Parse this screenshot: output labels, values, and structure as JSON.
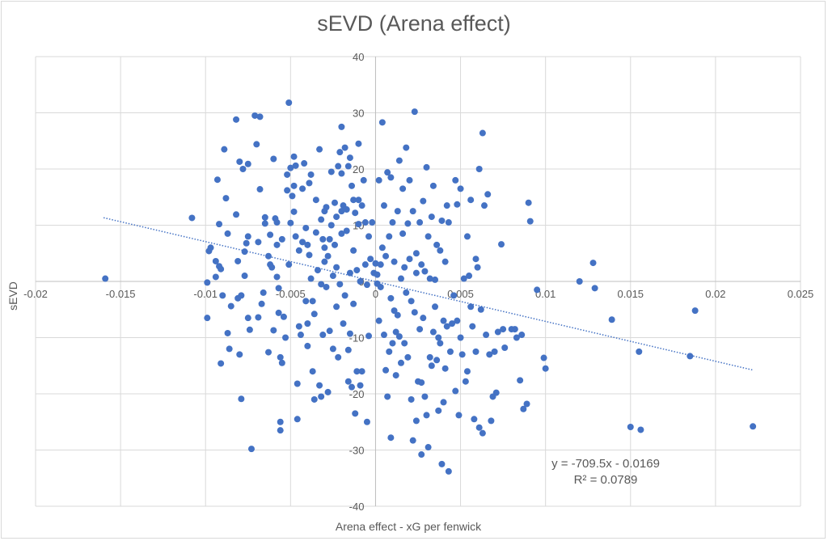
{
  "chart_data": {
    "type": "scatter",
    "title": "sEVD (Arena effect)",
    "xlabel": "Arena effect - xG per fenwick",
    "ylabel": "sEVD",
    "xlim": [
      -0.02,
      0.025
    ],
    "ylim": [
      -40,
      40
    ],
    "xticks": [
      "-0.02",
      "-0.015",
      "-0.01",
      "-0.005",
      "0",
      "0.005",
      "0.01",
      "0.015",
      "0.02",
      "0.025"
    ],
    "xtick_values": [
      -0.02,
      -0.015,
      -0.01,
      -0.005,
      0,
      0.005,
      0.01,
      0.015,
      0.02,
      0.025
    ],
    "yticks": [
      "-40",
      "-30",
      "-20",
      "-10",
      "0",
      "10",
      "20",
      "30",
      "40"
    ],
    "ytick_values": [
      -40,
      -30,
      -20,
      -10,
      0,
      10,
      20,
      30,
      40
    ],
    "grid": true,
    "legend": "none",
    "marker_color": "#4472C4",
    "trendline": {
      "type": "linear",
      "slope": -709.5,
      "intercept": -0.0169,
      "x_range": [
        -0.016,
        0.0222
      ],
      "style": "dotted",
      "color": "#4472C4",
      "equation_label": "y = -709.5x - 0.0169",
      "r2_label": "R² = 0.0789"
    },
    "points": [
      [
        -0.0159,
        0.5
      ],
      [
        -0.0108,
        11.3
      ],
      [
        -0.0099,
        -0.2
      ],
      [
        -0.0099,
        -6.5
      ],
      [
        -0.0098,
        5.4
      ],
      [
        -0.0097,
        6.0
      ],
      [
        -0.0094,
        0.8
      ],
      [
        -0.0094,
        3.6
      ],
      [
        -0.0093,
        18.1
      ],
      [
        -0.0092,
        10.2
      ],
      [
        -0.0092,
        2.7
      ],
      [
        -0.0091,
        2.2
      ],
      [
        -0.009,
        -2.5
      ],
      [
        -0.0091,
        -14.6
      ],
      [
        -0.0089,
        23.5
      ],
      [
        -0.0088,
        14.8
      ],
      [
        -0.0087,
        8.5
      ],
      [
        -0.0087,
        -9.2
      ],
      [
        -0.0086,
        -12.0
      ],
      [
        -0.0085,
        -4.4
      ],
      [
        -0.0082,
        28.8
      ],
      [
        -0.0082,
        11.9
      ],
      [
        -0.0081,
        3.6
      ],
      [
        -0.0081,
        -3.0
      ],
      [
        -0.008,
        -13.0
      ],
      [
        -0.008,
        21.3
      ],
      [
        -0.0078,
        20.0
      ],
      [
        -0.0079,
        -20.9
      ],
      [
        -0.0079,
        -2.5
      ],
      [
        -0.0077,
        5.3
      ],
      [
        -0.0077,
        1.0
      ],
      [
        -0.0076,
        6.8
      ],
      [
        -0.0075,
        8.0
      ],
      [
        -0.0075,
        -6.5
      ],
      [
        -0.0074,
        -8.6
      ],
      [
        -0.0075,
        20.9
      ],
      [
        -0.0073,
        -29.8
      ],
      [
        -0.0071,
        29.5
      ],
      [
        -0.007,
        24.4
      ],
      [
        -0.0069,
        7.0
      ],
      [
        -0.0069,
        -6.4
      ],
      [
        -0.0068,
        16.4
      ],
      [
        -0.0068,
        29.3
      ],
      [
        -0.0067,
        -4.0
      ],
      [
        -0.0066,
        -2.0
      ],
      [
        -0.0065,
        10.3
      ],
      [
        -0.0065,
        11.4
      ],
      [
        -0.0063,
        4.5
      ],
      [
        -0.0063,
        -12.6
      ],
      [
        -0.0062,
        8.3
      ],
      [
        -0.0062,
        3.0
      ],
      [
        -0.0061,
        2.5
      ],
      [
        -0.006,
        -8.7
      ],
      [
        -0.006,
        21.8
      ],
      [
        -0.0059,
        11.2
      ],
      [
        -0.0058,
        10.5
      ],
      [
        -0.0058,
        6.5
      ],
      [
        -0.0058,
        0.8
      ],
      [
        -0.0057,
        -1.2
      ],
      [
        -0.0057,
        -5.6
      ],
      [
        -0.0056,
        -25.0
      ],
      [
        -0.0056,
        -26.5
      ],
      [
        -0.0056,
        -13.5
      ],
      [
        -0.0055,
        -14.5
      ],
      [
        -0.0055,
        7.5
      ],
      [
        -0.0054,
        -6.3
      ],
      [
        -0.0053,
        -10.0
      ],
      [
        -0.0052,
        16.2
      ],
      [
        -0.0052,
        19.0
      ],
      [
        -0.0051,
        31.8
      ],
      [
        -0.0051,
        3.0
      ],
      [
        -0.005,
        10.4
      ],
      [
        -0.005,
        20.2
      ],
      [
        -0.0049,
        15.2
      ],
      [
        -0.0048,
        22.2
      ],
      [
        -0.0048,
        17.0
      ],
      [
        -0.0048,
        12.4
      ],
      [
        -0.0047,
        20.6
      ],
      [
        -0.0047,
        8.0
      ],
      [
        -0.0046,
        -24.5
      ],
      [
        -0.0046,
        -18.2
      ],
      [
        -0.0045,
        5.5
      ],
      [
        -0.0045,
        -8.0
      ],
      [
        -0.0044,
        -9.5
      ],
      [
        -0.0043,
        7.0
      ],
      [
        -0.0043,
        16.5
      ],
      [
        -0.0042,
        21.0
      ],
      [
        -0.0041,
        9.5
      ],
      [
        -0.0041,
        -3.5
      ],
      [
        -0.004,
        6.5
      ],
      [
        -0.004,
        -7.5
      ],
      [
        -0.004,
        -11.5
      ],
      [
        -0.0039,
        17.5
      ],
      [
        -0.0039,
        4.7
      ],
      [
        -0.0038,
        19.0
      ],
      [
        -0.0038,
        0.5
      ],
      [
        -0.0037,
        -16.0
      ],
      [
        -0.0037,
        -3.5
      ],
      [
        -0.0036,
        -5.8
      ],
      [
        -0.0036,
        -21.0
      ],
      [
        -0.0035,
        8.7
      ],
      [
        -0.0035,
        14.5
      ],
      [
        -0.0034,
        2.0
      ],
      [
        -0.0033,
        -18.5
      ],
      [
        -0.0033,
        23.5
      ],
      [
        -0.0032,
        -20.5
      ],
      [
        -0.0032,
        11.0
      ],
      [
        -0.0032,
        -0.5
      ],
      [
        -0.0031,
        7.5
      ],
      [
        -0.0031,
        -9.5
      ],
      [
        -0.003,
        6.0
      ],
      [
        -0.003,
        3.5
      ],
      [
        -0.003,
        12.5
      ],
      [
        -0.0029,
        -1.0
      ],
      [
        -0.0029,
        13.2
      ],
      [
        -0.0028,
        -19.7
      ],
      [
        -0.0028,
        4.5
      ],
      [
        -0.0027,
        -8.8
      ],
      [
        -0.0027,
        7.5
      ],
      [
        -0.0026,
        19.5
      ],
      [
        -0.0026,
        10.0
      ],
      [
        -0.0025,
        1.0
      ],
      [
        -0.0025,
        -12.0
      ],
      [
        -0.0024,
        14.0
      ],
      [
        -0.0024,
        6.5
      ],
      [
        -0.0023,
        2.5
      ],
      [
        -0.0023,
        11.5
      ],
      [
        -0.0023,
        -4.5
      ],
      [
        -0.0022,
        -13.5
      ],
      [
        -0.0022,
        20.5
      ],
      [
        -0.0021,
        23.0
      ],
      [
        -0.0021,
        -0.5
      ],
      [
        -0.002,
        8.5
      ],
      [
        -0.002,
        12.5
      ],
      [
        -0.002,
        27.5
      ],
      [
        -0.002,
        19.2
      ],
      [
        -0.0019,
        13.5
      ],
      [
        -0.0019,
        -7.5
      ],
      [
        -0.0018,
        23.8
      ],
      [
        -0.0018,
        -2.5
      ],
      [
        -0.0017,
        12.8
      ],
      [
        -0.0017,
        9.0
      ],
      [
        -0.0016,
        -17.8
      ],
      [
        -0.0016,
        -12.2
      ],
      [
        -0.0016,
        20.5
      ],
      [
        -0.0015,
        22.0
      ],
      [
        -0.0015,
        1.5
      ],
      [
        -0.0015,
        -9.3
      ],
      [
        -0.0014,
        -18.8
      ],
      [
        -0.0014,
        17.0
      ],
      [
        -0.0013,
        14.5
      ],
      [
        -0.0013,
        5.5
      ],
      [
        -0.0013,
        -4.0
      ],
      [
        -0.0012,
        12.2
      ],
      [
        -0.0012,
        -23.5
      ],
      [
        -0.0011,
        -16.0
      ],
      [
        -0.0011,
        2.0
      ],
      [
        -0.001,
        14.5
      ],
      [
        -0.001,
        24.5
      ],
      [
        -0.001,
        10.2
      ],
      [
        -0.0009,
        0.0
      ],
      [
        -0.0009,
        -18.5
      ],
      [
        -0.0008,
        -16.0
      ],
      [
        -0.0008,
        13.5
      ],
      [
        -0.0007,
        18.0
      ],
      [
        -0.0006,
        10.5
      ],
      [
        -0.0006,
        3.0
      ],
      [
        -0.0005,
        -0.6
      ],
      [
        -0.0005,
        -25.0
      ],
      [
        -0.0004,
        -9.7
      ],
      [
        -0.0004,
        8.0
      ],
      [
        -0.0003,
        4.0
      ],
      [
        -0.0002,
        10.5
      ],
      [
        -0.0001,
        1.5
      ],
      [
        0.0,
        3.2
      ],
      [
        0.0001,
        1.2
      ],
      [
        0.0001,
        -0.4
      ],
      [
        0.0002,
        -7.0
      ],
      [
        0.0002,
        18.0
      ],
      [
        0.0003,
        -1.0
      ],
      [
        0.0003,
        3.0
      ],
      [
        0.0004,
        28.3
      ],
      [
        0.0004,
        6.0
      ],
      [
        0.0005,
        -9.5
      ],
      [
        0.0005,
        13.5
      ],
      [
        0.0006,
        -15.8
      ],
      [
        0.0006,
        4.5
      ],
      [
        0.0007,
        -20.5
      ],
      [
        0.0007,
        19.4
      ],
      [
        0.0008,
        8.0
      ],
      [
        0.0008,
        -12.5
      ],
      [
        0.0009,
        -3.0
      ],
      [
        0.0009,
        18.5
      ],
      [
        0.0009,
        -27.8
      ],
      [
        0.001,
        10.5
      ],
      [
        0.001,
        -11.0
      ],
      [
        0.0011,
        -5.2
      ],
      [
        0.0011,
        3.5
      ],
      [
        0.0012,
        -16.7
      ],
      [
        0.0012,
        -9.0
      ],
      [
        0.0013,
        12.5
      ],
      [
        0.0013,
        -6.0
      ],
      [
        0.0014,
        21.5
      ],
      [
        0.0014,
        -9.8
      ],
      [
        0.0015,
        0.5
      ],
      [
        0.0015,
        -14.5
      ],
      [
        0.0016,
        16.5
      ],
      [
        0.0016,
        8.5
      ],
      [
        0.0017,
        -11.0
      ],
      [
        0.0017,
        2.5
      ],
      [
        0.0018,
        -2.0
      ],
      [
        0.0018,
        23.8
      ],
      [
        0.0019,
        10.3
      ],
      [
        0.0019,
        -13.5
      ],
      [
        0.002,
        4.0
      ],
      [
        0.002,
        18.0
      ],
      [
        0.0021,
        -3.5
      ],
      [
        0.0021,
        -21.0
      ],
      [
        0.0022,
        12.5
      ],
      [
        0.0022,
        -28.3
      ],
      [
        0.0023,
        30.2
      ],
      [
        0.0023,
        -5.5
      ],
      [
        0.0024,
        5.0
      ],
      [
        0.0024,
        -24.8
      ],
      [
        0.0024,
        1.5
      ],
      [
        0.0025,
        -17.8
      ],
      [
        0.0026,
        -8.5
      ],
      [
        0.0026,
        10.5
      ],
      [
        0.0027,
        -30.8
      ],
      [
        0.0027,
        3.0
      ],
      [
        0.0027,
        -18.0
      ],
      [
        0.0028,
        14.3
      ],
      [
        0.0028,
        -6.5
      ],
      [
        0.0029,
        -20.5
      ],
      [
        0.0029,
        1.8
      ],
      [
        0.003,
        20.3
      ],
      [
        0.003,
        -23.8
      ],
      [
        0.0031,
        8.0
      ],
      [
        0.0031,
        -29.5
      ],
      [
        0.0032,
        -13.5
      ],
      [
        0.0032,
        0.5
      ],
      [
        0.0033,
        11.5
      ],
      [
        0.0033,
        -15.0
      ],
      [
        0.0034,
        17.0
      ],
      [
        0.0034,
        -9.0
      ],
      [
        0.0035,
        -4.5
      ],
      [
        0.0035,
        0.3
      ],
      [
        0.0036,
        -14.0
      ],
      [
        0.0036,
        6.5
      ],
      [
        0.0037,
        -10.0
      ],
      [
        0.0037,
        -23.0
      ],
      [
        0.0038,
        5.5
      ],
      [
        0.0038,
        -11.0
      ],
      [
        0.0039,
        -32.5
      ],
      [
        0.0039,
        10.8
      ],
      [
        0.004,
        -7.0
      ],
      [
        0.004,
        -21.5
      ],
      [
        0.0041,
        3.5
      ],
      [
        0.0041,
        -15.5
      ],
      [
        0.0042,
        13.5
      ],
      [
        0.0042,
        -8.0
      ],
      [
        0.0043,
        10.5
      ],
      [
        0.0043,
        -33.8
      ],
      [
        0.0044,
        -12.5
      ],
      [
        0.0045,
        -7.5
      ],
      [
        0.0046,
        -2.5
      ],
      [
        0.0047,
        -19.5
      ],
      [
        0.0047,
        18.0
      ],
      [
        0.0048,
        -7.0
      ],
      [
        0.0048,
        13.7
      ],
      [
        0.0049,
        -23.8
      ],
      [
        0.005,
        -10.0
      ],
      [
        0.005,
        16.5
      ],
      [
        0.0051,
        -13.0
      ],
      [
        0.0052,
        0.5
      ],
      [
        0.0053,
        -17.8
      ],
      [
        0.0054,
        8.0
      ],
      [
        0.0054,
        -16.0
      ],
      [
        0.0055,
        1.0
      ],
      [
        0.0056,
        -4.5
      ],
      [
        0.0056,
        14.5
      ],
      [
        0.0057,
        -8.0
      ],
      [
        0.0058,
        -24.5
      ],
      [
        0.0059,
        4.0
      ],
      [
        0.0059,
        -12.5
      ],
      [
        0.006,
        2.5
      ],
      [
        0.0061,
        20.0
      ],
      [
        0.0061,
        -26.0
      ],
      [
        0.0062,
        -5.0
      ],
      [
        0.0063,
        -27.0
      ],
      [
        0.0063,
        26.4
      ],
      [
        0.0064,
        13.5
      ],
      [
        0.0065,
        -9.5
      ],
      [
        0.0066,
        15.5
      ],
      [
        0.0067,
        -13.0
      ],
      [
        0.0068,
        -24.8
      ],
      [
        0.0069,
        -20.5
      ],
      [
        0.007,
        -12.5
      ],
      [
        0.0071,
        -19.8
      ],
      [
        0.0072,
        -9.0
      ],
      [
        0.0074,
        6.6
      ],
      [
        0.0075,
        -8.5
      ],
      [
        0.0076,
        -11.8
      ],
      [
        0.008,
        -8.5
      ],
      [
        0.0082,
        -8.5
      ],
      [
        0.0083,
        -10.0
      ],
      [
        0.0085,
        -17.6
      ],
      [
        0.0086,
        -9.5
      ],
      [
        0.0087,
        -22.7
      ],
      [
        0.0089,
        -21.8
      ],
      [
        0.009,
        14.0
      ],
      [
        0.0091,
        10.7
      ],
      [
        0.0095,
        -1.5
      ],
      [
        0.0099,
        -13.6
      ],
      [
        0.01,
        -15.5
      ],
      [
        0.012,
        0.0
      ],
      [
        0.0128,
        3.3
      ],
      [
        0.0129,
        -1.2
      ],
      [
        0.0139,
        -6.8
      ],
      [
        0.015,
        -25.9
      ],
      [
        0.0155,
        -12.5
      ],
      [
        0.0156,
        -26.4
      ],
      [
        0.0185,
        -13.3
      ],
      [
        0.0188,
        -5.2
      ],
      [
        0.0222,
        -25.8
      ]
    ]
  }
}
